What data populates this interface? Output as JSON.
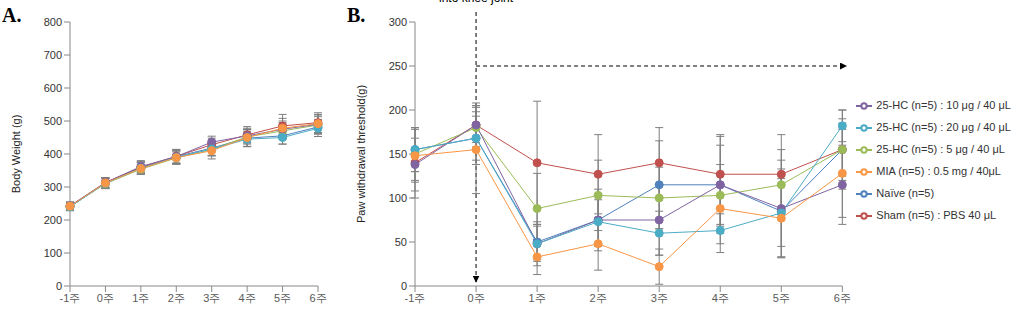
{
  "chart_data": [
    {
      "type": "line",
      "label": "A.",
      "y_label": "Body Weight (g)",
      "categories": [
        "-1주",
        "0주",
        "1주",
        "2주",
        "3주",
        "4주",
        "5주",
        "6주"
      ],
      "ylim": [
        0,
        800
      ],
      "yticks": [
        0,
        100,
        200,
        300,
        400,
        500,
        600,
        700,
        800
      ],
      "grid": false,
      "marker": "circle",
      "series": [
        {
          "color": "#4f81bd",
          "values": [
            240,
            312,
            358,
            392,
            418,
            448,
            455,
            482
          ],
          "errors": [
            12,
            15,
            18,
            20,
            22,
            25,
            25,
            22
          ]
        },
        {
          "color": "#c0504d",
          "values": [
            242,
            314,
            360,
            393,
            428,
            458,
            485,
            495
          ],
          "errors": [
            10,
            14,
            16,
            20,
            20,
            25,
            35,
            30
          ]
        },
        {
          "color": "#9bbb59",
          "values": [
            241,
            310,
            354,
            388,
            414,
            452,
            470,
            488
          ],
          "errors": [
            10,
            15,
            15,
            18,
            20,
            22,
            25,
            25
          ]
        },
        {
          "color": "#8064a2",
          "values": [
            243,
            313,
            362,
            392,
            436,
            455,
            475,
            490
          ],
          "errors": [
            12,
            15,
            18,
            22,
            18,
            20,
            25,
            28
          ]
        },
        {
          "color": "#4bacc6",
          "values": [
            240,
            311,
            357,
            390,
            415,
            445,
            450,
            478
          ],
          "errors": [
            10,
            14,
            18,
            20,
            20,
            22,
            20,
            25
          ]
        },
        {
          "color": "#f79646",
          "values": [
            242,
            312,
            356,
            389,
            410,
            450,
            478,
            492
          ],
          "errors": [
            12,
            16,
            18,
            20,
            25,
            28,
            30,
            28
          ]
        }
      ]
    },
    {
      "type": "line",
      "label": "B.",
      "y_label": "Paw withdrawal threshold(g)",
      "categories": [
        "-1주",
        "0주",
        "1주",
        "2주",
        "3주",
        "4주",
        "5주",
        "6주"
      ],
      "ylim": [
        0,
        300
      ],
      "yticks": [
        0,
        50,
        100,
        150,
        200,
        250,
        300
      ],
      "grid": false,
      "marker": "circle",
      "legend": "right",
      "annotation": {
        "text": "OA induction: Intra-articular injection into knee joint",
        "x": "0주",
        "arrow_y": 250
      },
      "series": [
        {
          "name": "Naïve (n=5)",
          "color": "#4f81bd",
          "values": [
            155,
            168,
            50,
            75,
            115,
            115,
            85,
            155
          ],
          "errors": [
            25,
            25,
            20,
            30,
            50,
            45,
            40,
            30
          ]
        },
        {
          "name": "Sham (n=5) : PBS 40 μL",
          "color": "#c0504d",
          "values": [
            140,
            183,
            140,
            127,
            140,
            127,
            127,
            155
          ],
          "errors": [
            40,
            20,
            70,
            45,
            40,
            45,
            45,
            45
          ]
        },
        {
          "name": "25-HC (n=5) : 5 μg / 40 μL",
          "color": "#9bbb59",
          "values": [
            150,
            180,
            88,
            103,
            100,
            103,
            115,
            155
          ],
          "errors": [
            30,
            25,
            40,
            40,
            35,
            35,
            40,
            35
          ]
        },
        {
          "name": "25-HC (n=5) : 10 μg / 40 μL",
          "color": "#8064a2",
          "values": [
            138,
            183,
            48,
            75,
            75,
            115,
            88,
            115
          ],
          "errors": [
            30,
            25,
            25,
            35,
            40,
            55,
            55,
            45
          ]
        },
        {
          "name": "25-HC (n=5) : 20 μg / 40 μL",
          "color": "#4bacc6",
          "values": [
            155,
            168,
            48,
            73,
            60,
            63,
            83,
            182
          ],
          "errors": [
            25,
            30,
            20,
            25,
            25,
            25,
            50,
            18
          ]
        },
        {
          "name": "MIA (n=5) : 0.5 mg / 40μL",
          "color": "#f79646",
          "values": [
            148,
            155,
            33,
            48,
            22,
            88,
            77,
            128
          ],
          "errors": [
            30,
            50,
            20,
            30,
            20,
            40,
            45,
            50
          ]
        }
      ]
    }
  ]
}
